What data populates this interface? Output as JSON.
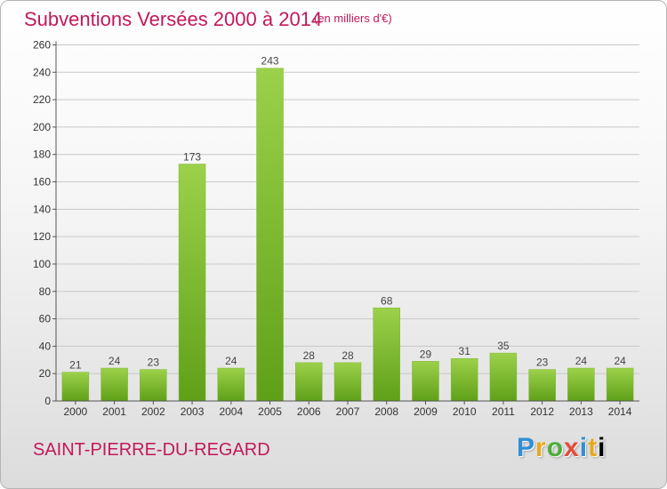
{
  "header": {
    "title": "Subventions Versées 2000 à 2014",
    "unit_note": "(en milliers d'€)"
  },
  "footer": {
    "commune": "SAINT-PIERRE-DU-REGARD",
    "brand": "Proxiti"
  },
  "colors": {
    "accent": "#c2185b",
    "bar_light": "#9cd14a",
    "bar_dark": "#5fa018",
    "grid": "#c8c8c8"
  },
  "chart_data": {
    "type": "bar",
    "title": "Subventions Versées 2000 à 2014",
    "subtitle": "(en milliers d'€)",
    "xlabel": "",
    "ylabel": "",
    "categories": [
      "2000",
      "2001",
      "2002",
      "2003",
      "2004",
      "2005",
      "2006",
      "2007",
      "2008",
      "2009",
      "2010",
      "2011",
      "2012",
      "2013",
      "2014"
    ],
    "values": [
      21,
      24,
      23,
      173,
      24,
      243,
      28,
      28,
      68,
      29,
      31,
      35,
      23,
      24,
      24
    ],
    "ylim": [
      0,
      260
    ],
    "yticks": [
      0,
      20,
      40,
      60,
      80,
      100,
      120,
      140,
      160,
      180,
      200,
      220,
      240,
      260
    ],
    "grid": true,
    "data_labels": true
  }
}
